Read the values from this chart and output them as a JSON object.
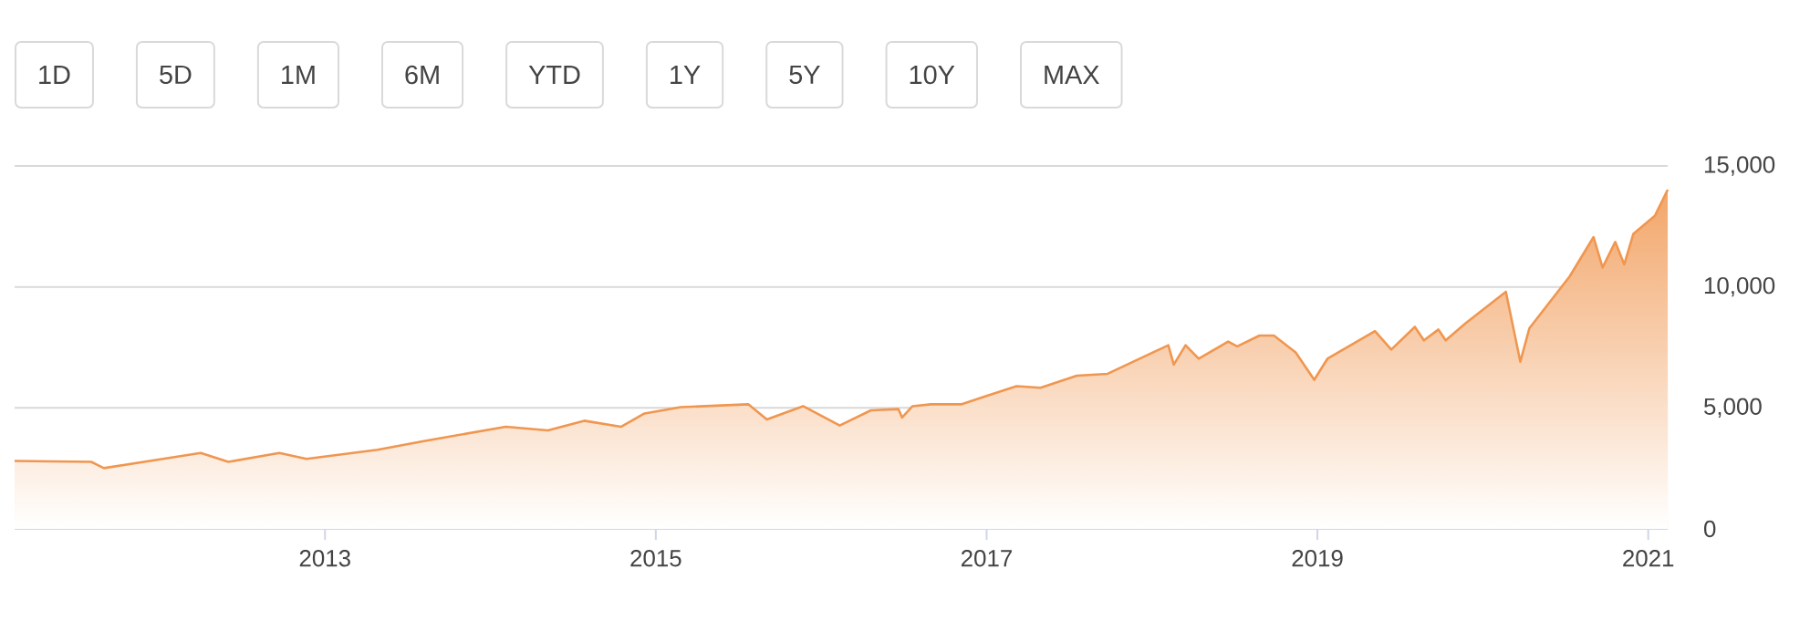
{
  "chart_data": {
    "type": "area",
    "x": [
      "2011-02-15",
      "2011-08-03",
      "2011-08-31",
      "2012-04-01",
      "2012-06-01",
      "2012-09-22",
      "2012-11-21",
      "2013-04-27",
      "2013-08-10",
      "2014-02-04",
      "2014-05-08",
      "2014-07-27",
      "2014-10-16",
      "2014-12-07",
      "2015-02-25",
      "2015-07-24",
      "2015-09-03",
      "2015-11-22",
      "2016-02-11",
      "2016-04-20",
      "2016-06-20",
      "2016-06-28",
      "2016-07-21",
      "2016-08-31",
      "2016-11-07",
      "2016-12-30",
      "2017-03-08",
      "2017-04-30",
      "2017-07-19",
      "2017-09-25",
      "2018-02-06",
      "2018-02-18",
      "2018-03-16",
      "2018-04-14",
      "2018-06-18",
      "2018-07-08",
      "2018-08-26",
      "2018-09-27",
      "2018-11-14",
      "2018-12-25",
      "2019-01-23",
      "2019-05-08",
      "2019-06-13",
      "2019-08-04",
      "2019-08-24",
      "2019-09-25",
      "2019-10-11",
      "2019-11-24",
      "2020-02-21",
      "2020-03-24",
      "2020-04-13",
      "2020-07-11",
      "2020-09-02",
      "2020-09-22",
      "2020-10-20",
      "2020-11-09",
      "2020-11-29",
      "2021-01-16",
      "2021-02-13"
    ],
    "series": [
      {
        "color": "#f0964f",
        "values": [
          2810,
          2770,
          2510,
          3140,
          2770,
          3140,
          2890,
          3270,
          3640,
          4220,
          4070,
          4470,
          4220,
          4770,
          5030,
          5150,
          4520,
          5070,
          4270,
          4900,
          4950,
          4600,
          5070,
          5150,
          5150,
          5480,
          5900,
          5830,
          6330,
          6410,
          7590,
          6790,
          7590,
          7030,
          7740,
          7540,
          7990,
          7990,
          7290,
          6160,
          7030,
          8170,
          7410,
          8350,
          7790,
          8240,
          7790,
          8500,
          9800,
          6910,
          8290,
          10430,
          12060,
          10800,
          11860,
          10930,
          12190,
          12950,
          14020
        ]
      }
    ],
    "xlim": [
      "2011-02-15",
      "2021-02-13"
    ],
    "xticks": [
      {
        "value": "2013",
        "label": "2013"
      },
      {
        "value": "2015",
        "label": "2015"
      },
      {
        "value": "2017",
        "label": "2017"
      },
      {
        "value": "2019",
        "label": "2019"
      },
      {
        "value": "2021",
        "label": "2021"
      }
    ],
    "ylim": [
      0,
      15000
    ],
    "yticks": [
      {
        "value": 0,
        "label": "0"
      },
      {
        "value": 5000,
        "label": "5,000"
      },
      {
        "value": 10000,
        "label": "10,000"
      },
      {
        "value": 15000,
        "label": "15,000"
      }
    ],
    "grid": "y",
    "annotations": [
      "1D",
      "5D",
      "1M",
      "6M",
      "YTD",
      "1Y",
      "5Y",
      "10Y",
      "MAX"
    ]
  }
}
